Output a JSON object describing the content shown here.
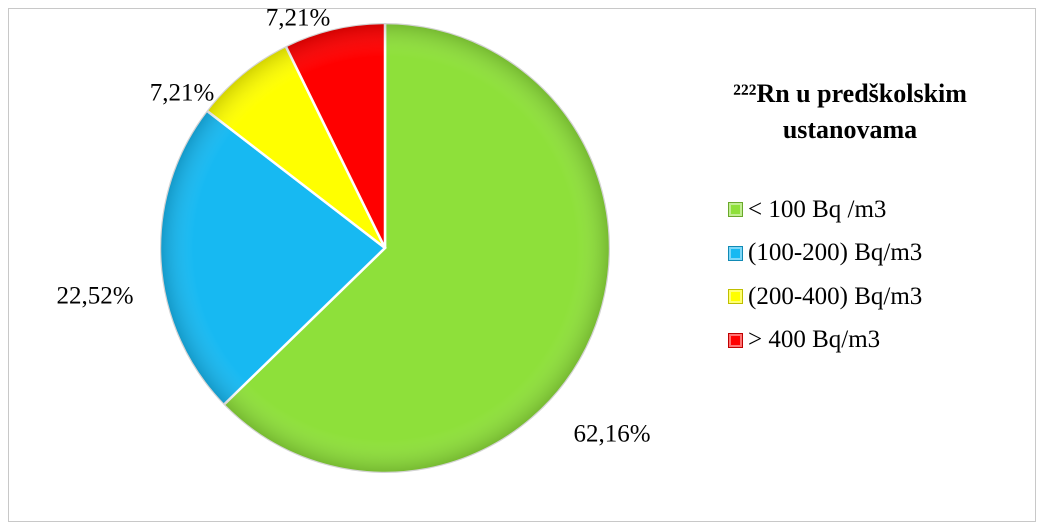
{
  "chart_data": {
    "type": "pie",
    "title": "²²²Rn u predškolskim ustanovama",
    "categories": [
      "< 100 Bq /m3",
      "(100-200) Bq/m3",
      "(200-400) Bq/m3",
      "> 400 Bq/m3"
    ],
    "values": [
      62.16,
      22.52,
      7.21,
      7.21
    ],
    "value_labels": [
      "62,16%",
      "22,52%",
      "7,21%",
      "7,21%"
    ],
    "colors": [
      "#8ee03a",
      "#17b9f2",
      "#ffff00",
      "#ff0000"
    ],
    "legend": "right"
  }
}
